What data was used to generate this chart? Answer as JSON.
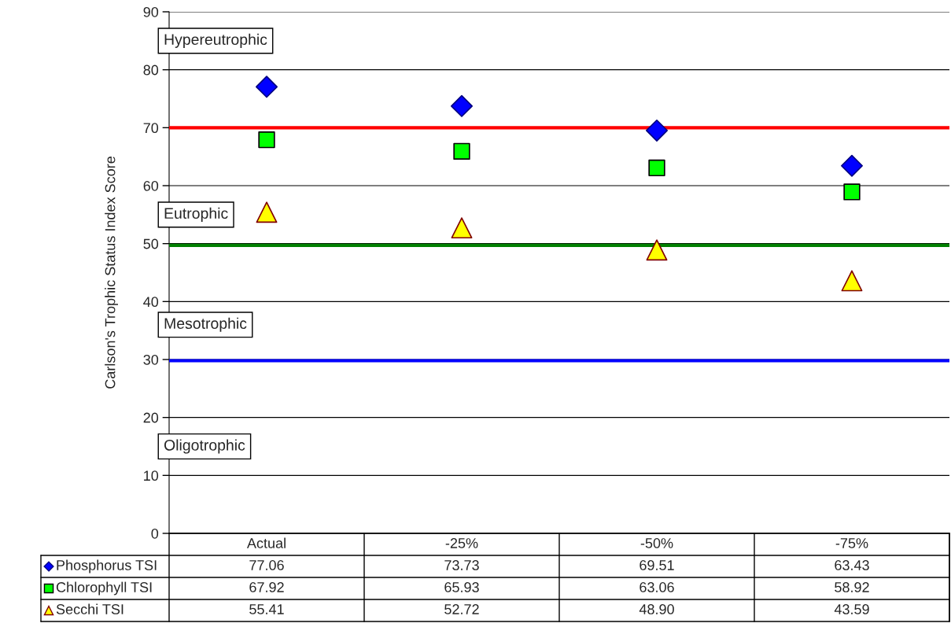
{
  "chart_data": {
    "type": "scatter",
    "ylabel": "Carlson's Trophic Status Index Score",
    "categories": [
      "Actual",
      "-25%",
      "-50%",
      "-75%"
    ],
    "series": [
      {
        "name": "Phosphorus TSI",
        "color": "#0000ff",
        "marker": "diamond",
        "values": [
          77.06,
          73.73,
          69.51,
          63.43
        ],
        "value_labels": [
          "77.06",
          "73.73",
          "69.51",
          "63.43"
        ]
      },
      {
        "name": "Chlorophyll TSI",
        "color": "#00ff00",
        "marker": "square",
        "values": [
          67.92,
          65.93,
          63.06,
          58.92
        ],
        "value_labels": [
          "67.92",
          "65.93",
          "63.06",
          "58.92"
        ]
      },
      {
        "name": "Secchi TSI",
        "color": "#ffff00",
        "marker": "triangle",
        "values": [
          55.41,
          52.72,
          48.9,
          43.59
        ],
        "value_labels": [
          "55.41",
          "52.72",
          "48.90",
          "43.59"
        ]
      }
    ],
    "ylim": [
      0,
      90
    ],
    "yticks": [
      0,
      10,
      20,
      30,
      40,
      50,
      60,
      70,
      80,
      90
    ],
    "grid": "y",
    "legend": "bottom left",
    "tick_labels": "y",
    "ref_lines": [
      {
        "axis": "y",
        "value": 70,
        "color": "#ff0000"
      },
      {
        "axis": "y",
        "value": 49.7,
        "color": "#008000"
      },
      {
        "axis": "y",
        "value": 29.8,
        "color": "#0000ff"
      }
    ],
    "annotations": [
      "Hypereutrophic",
      "Eutrophic",
      "Mesotrophic",
      "Oligotrophic"
    ]
  }
}
